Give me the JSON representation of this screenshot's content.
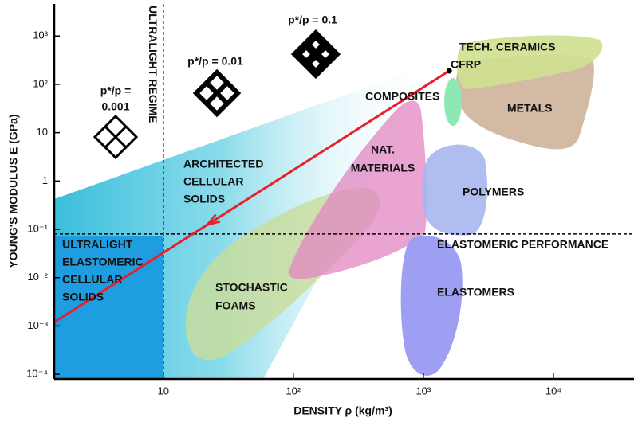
{
  "chart_data": {
    "type": "line",
    "x_label": "DENSITY ρ (kg/m³)",
    "y_label": "YOUNG'S MODULUS E  (GPa)",
    "log_x": true,
    "log_y": true,
    "xlim": [
      1.45,
      41700
    ],
    "ylim": [
      8e-05,
      4600
    ],
    "xticks": [
      10,
      {
        "value": 100,
        "label": "10²"
      },
      {
        "value": 1000,
        "label": "10³"
      },
      {
        "value": 10000,
        "label": "10⁴"
      }
    ],
    "yticks": [
      {
        "value": 0.0001,
        "label": "10⁻⁴"
      },
      {
        "value": 0.001,
        "label": "10⁻³"
      },
      {
        "value": 0.01,
        "label": "10⁻²"
      },
      {
        "value": 0.1,
        "label": "10⁻¹"
      },
      1,
      10,
      {
        "value": 100,
        "label": "10²"
      },
      {
        "value": 1000,
        "label": "10³"
      }
    ],
    "line": {
      "color": "#e8202a",
      "x": [
        1.45,
        1580
      ],
      "y": [
        0.0012,
        190
      ]
    },
    "ultralight_density": 10,
    "ultralight_label": "ULTRALIGHT REGIME",
    "elastomeric_modulus": 0.08,
    "elastomeric_label": "ELASTOMERIC PERFORMANCE",
    "relative_density_labels": [
      [
        "p*/p =",
        "0.001"
      ],
      [
        "p*/p = 0.01"
      ],
      [
        "p*/p = 0.1"
      ]
    ],
    "region_labels": {
      "tech_ceramics": [
        "TECH. CERAMICS"
      ],
      "cfrp": [
        "CFRP"
      ],
      "composites": [
        "COMPOSITES"
      ],
      "metals": [
        "METALS"
      ],
      "nat_materials": [
        "NAT.",
        "MATERIALS"
      ],
      "polymers": [
        "POLYMERS"
      ],
      "architected": [
        "ARCHITECTED",
        "CELLULAR",
        "SOLIDS"
      ],
      "ultralight_elastomeric": [
        "ULTRALIGHT",
        "ELASTOMERIC",
        "CELLULAR",
        "SOLIDS"
      ],
      "stochastic_foams": [
        "STOCHASTIC",
        "FOAMS"
      ],
      "elastomers": [
        "ELASTOMERS"
      ]
    }
  }
}
